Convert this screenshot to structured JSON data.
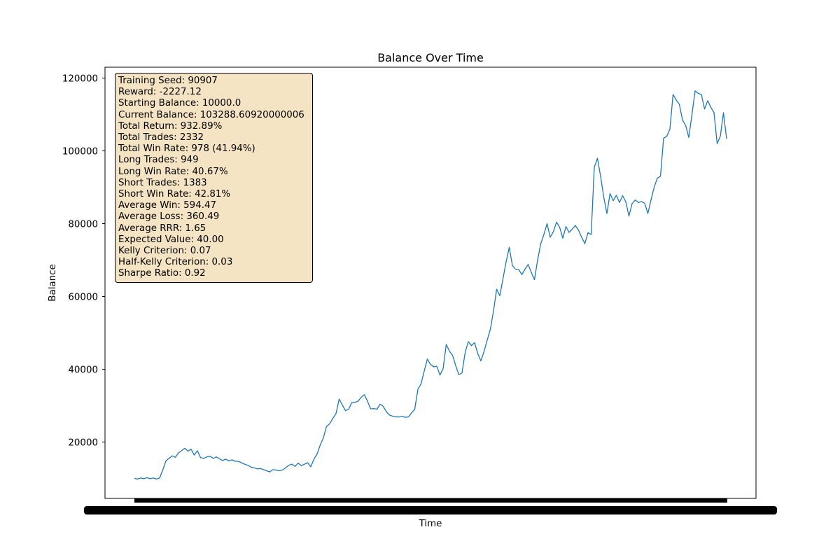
{
  "chart_data": {
    "type": "line",
    "title": "Balance Over Time",
    "xlabel": "Time",
    "ylabel": "Balance",
    "ylim": [
      4500,
      123000
    ],
    "yticks": [
      20000,
      40000,
      60000,
      80000,
      100000,
      120000
    ],
    "ytick_labels": [
      "20000",
      "40000",
      "60000",
      "80000",
      "100000",
      "120000"
    ],
    "grid": false,
    "line_color": "#1f77b4",
    "series": [
      {
        "values": [
          10000,
          9800,
          10100,
          9900,
          10200,
          9900,
          10100,
          9800,
          10100,
          12300,
          14800,
          15500,
          16200,
          15800,
          17000,
          17600,
          18300,
          17500,
          18000,
          16400,
          17600,
          15700,
          15500,
          15900,
          16100,
          15500,
          15900,
          15400,
          14900,
          15300,
          14800,
          15100,
          14700,
          14700,
          14300,
          13900,
          13600,
          13100,
          12900,
          12600,
          12700,
          12400,
          12100,
          11800,
          12400,
          12300,
          12100,
          12300,
          12900,
          13600,
          13900,
          13300,
          14200,
          13500,
          13900,
          14300,
          13200,
          15300,
          16700,
          19200,
          21200,
          24300,
          25000,
          26500,
          27800,
          31800,
          30200,
          28600,
          29000,
          30800,
          30900,
          31200,
          32300,
          33000,
          31200,
          29100,
          29200,
          29000,
          30400,
          29800,
          28300,
          27400,
          27100,
          26900,
          26900,
          27000,
          26800,
          26900,
          28000,
          29000,
          34500,
          36000,
          39500,
          42800,
          41300,
          40700,
          40800,
          38400,
          40100,
          46800,
          45000,
          43800,
          41000,
          38500,
          39000,
          44600,
          47600,
          46500,
          47300,
          44300,
          42300,
          44900,
          48000,
          51000,
          56000,
          62000,
          60200,
          64800,
          69500,
          73500,
          68500,
          67500,
          67400,
          66000,
          67500,
          68800,
          66600,
          64600,
          70000,
          74500,
          77000,
          80000,
          76300,
          77800,
          80400,
          79000,
          76000,
          79200,
          77600,
          78500,
          79500,
          78200,
          76200,
          74500,
          77500,
          77000,
          95500,
          98000,
          93000,
          87300,
          82800,
          88300,
          86300,
          87800,
          85800,
          87700,
          86000,
          82100,
          85500,
          86500,
          85800,
          86100,
          85600,
          82800,
          86500,
          90000,
          92500,
          93000,
          103500,
          104000,
          106000,
          115500,
          114000,
          112800,
          108500,
          107000,
          103700,
          110000,
          116500,
          115800,
          115500,
          111500,
          113800,
          112000,
          110500,
          102000,
          104000,
          110500,
          103300
        ]
      }
    ]
  },
  "stats_lines": [
    "Training Seed: 90907",
    "Reward: -2227.12",
    "Starting Balance: 10000.0",
    "Current Balance: 103288.60920000006",
    "Total Return: 932.89%",
    "Total Trades: 2332",
    "Total Win Rate: 978 (41.94%)",
    "Long Trades: 949",
    "Long Win Rate: 40.67%",
    "Short Trades: 1383",
    "Short Win Rate: 42.81%",
    "Average Win: 594.47",
    "Average Loss: 360.49",
    "Average RRR: 1.65",
    "Expected Value: 40.00",
    "Kelly Criterion: 0.07",
    "Half-Kelly Criterion: 0.03",
    "Sharpe Ratio: 0.92"
  ],
  "stats_box_color": "#f5e4c4"
}
